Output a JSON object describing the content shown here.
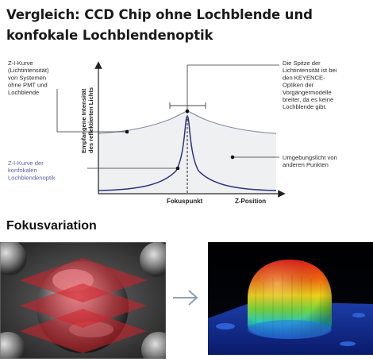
{
  "title": "Vergleich: CCD Chip ohne Lochblende und konfokale Lochblendenoptik",
  "diagram": {
    "y_axis_label_line1": "Empfangene Intensität",
    "y_axis_label_line2": "des reflektierten Lichts",
    "x_axis_label": "Z-Position",
    "focus_label": "Fokuspunkt",
    "left_top_label": [
      "Z-I-Kurve",
      "(Lichtintensität)",
      "von Systemen",
      "ohne PMT und",
      "Lochblende"
    ],
    "left_bottom_label": [
      "Z-I-Kurve der",
      "konfokalen",
      "Lochblendenoptik"
    ],
    "right_top_label": [
      "Die Spitze der",
      "Lichtintensität ist bei",
      "den KEYENCE-",
      "Optiken der",
      "Vorgängermodelle",
      "breiter, da es keine",
      "Lochblende gibt."
    ],
    "right_bottom_label": [
      "Umgebungslicht von",
      "anderen Punkten"
    ]
  },
  "section2_title": "Fokusvariation",
  "colors": {
    "wide_curve": "#8a8fa8",
    "confocal_curve": "#2c3480",
    "fill": "#eef0f2",
    "blue_text": "#5a63a5"
  },
  "images": {
    "left": "metal-sphere-with-red-focus-planes",
    "right": "3d-height-map-color-dome"
  }
}
